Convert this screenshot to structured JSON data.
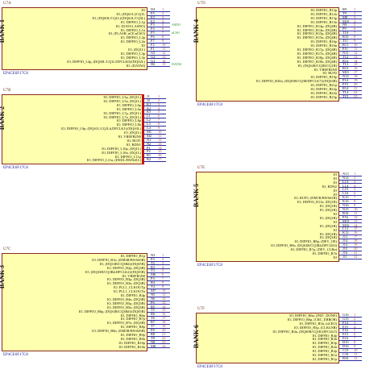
{
  "units": [
    {
      "ref": "U7A",
      "part": "EP4CE6F17C8",
      "bank": "BANK 1",
      "pins": [
        {
          "sig": "IO",
          "pin": "D4",
          "pno": "1"
        },
        {
          "sig": "IO, (DQS1L)/CQ1L",
          "pin": "E5",
          "pno": "2"
        },
        {
          "sig": "IO, (DQS0L/CQ1L)/(DQS2L/CQ3L)",
          "pin": "E3",
          "pno": "3"
        },
        {
          "sig": "IO, DIFFIO_L1p",
          "pin": "E2",
          "pno": "4"
        },
        {
          "sig": "IO, (DATA1,ASDO)",
          "pin": "F3",
          "pno": "5",
          "net": "ASDO"
        },
        {
          "sig": "IO, DIFFIO_L1n",
          "pin": "F4",
          "pno": "6"
        },
        {
          "sig": "IO, (FLASH_nCE,nCSO)",
          "pin": "F5",
          "pno": "7",
          "net": "nCSO"
        },
        {
          "sig": "IO, DIFFIO_L2p",
          "pin": "F6",
          "pno": "8"
        },
        {
          "sig": "IO, DIFFIO_L2n",
          "pin": "F7",
          "pno": "9"
        },
        {
          "sig": "IO",
          "pin": "F2",
          "pno": "10"
        },
        {
          "sig": "IO, (DQ1L)",
          "pin": "F1",
          "pno": "11"
        },
        {
          "sig": "IO, DIFFIO_L3p",
          "pin": "G5",
          "pno": "12"
        },
        {
          "sig": "IO, DIFFIO_L3n",
          "pin": "G2",
          "pno": "13"
        },
        {
          "sig": "IO, DIFFIO_L4p, (DQS0L/CQ1L/DPCLK0)/(DQS2L)",
          "pin": "G1",
          "pno": "14"
        },
        {
          "sig": "IO, (DATA0)",
          "pin": "H2",
          "pno": "15",
          "net": "DATA0"
        }
      ]
    },
    {
      "ref": "U7B",
      "part": "EP4CE6F17C8",
      "bank": "BANK 2",
      "pins": [
        {
          "sig": "IO, DIFFIO_L5p, (DQ1L)",
          "pin": "J1",
          "pno": "1"
        },
        {
          "sig": "IO, DIFFIO_L5n, (DQ1L)",
          "pin": "J2",
          "pno": "2"
        },
        {
          "sig": "IO, DIFFIO_L6p",
          "pin": "K1",
          "pno": "3"
        },
        {
          "sig": "IO, DIFFIO_L6n",
          "pin": "K2",
          "pno": "4"
        },
        {
          "sig": "IO, DIFFIO_L7p, (DQ1L)",
          "pin": "K5",
          "pno": "5"
        },
        {
          "sig": "IO, DIFFIO_L7n, (DQ1L)",
          "pin": "L1",
          "pno": "6"
        },
        {
          "sig": "IO, DIFFIO_L8p",
          "pin": "L2",
          "pno": "7"
        },
        {
          "sig": "IO, DIFFIO_L8n",
          "pin": "L3",
          "pno": "8"
        },
        {
          "sig": "IO, DIFFIO_L9p, (DQS1L/CQ1L#,DPCLK1)/(DQS3L)",
          "pin": "L4",
          "pno": "9"
        },
        {
          "sig": "IO, (DQ1L)",
          "pin": "M1",
          "pno": "10"
        },
        {
          "sig": "IO, VREFB2N0",
          "pin": "M2",
          "pno": "11"
        },
        {
          "sig": "IO, RUP1",
          "pin": "N1",
          "pno": "12"
        },
        {
          "sig": "IO, RDN1",
          "pin": "N2",
          "pno": "13"
        },
        {
          "sig": "IO, DIFFIO_L10p, (DQ1L)",
          "pin": "P1",
          "pno": "14"
        },
        {
          "sig": "IO, DIFFIO_L10n, (DQ1L)",
          "pin": "P2",
          "pno": "15"
        },
        {
          "sig": "IO, DIFFIO_L11p",
          "pin": "R1",
          "pno": "16"
        },
        {
          "sig": "IO, DIFFIO_L11n, (DM1L/BWS#1L)",
          "pin": "R2",
          "pno": "17"
        }
      ]
    },
    {
      "ref": "U7C",
      "part": "EP4CE6F17C8",
      "bank": "BANK 3",
      "pins": [
        {
          "sig": "IO, DIFFIO_B1p",
          "pin": "N3",
          "pno": "1"
        },
        {
          "sig": "IO, DIFFIO_B1n, (DM3B/BWS#3B)",
          "pin": "P3",
          "pno": "2"
        },
        {
          "sig": "IO, (DQS3B/CQ3B#)/(DQS5B)",
          "pin": "T2",
          "pno": "3"
        },
        {
          "sig": "IO, DIFFIO_B2p, (DQ3B)",
          "pin": "R3",
          "pno": "4"
        },
        {
          "sig": "IO, (DQS3B/CQ3B#,DPCLK2)/(DQS5B)",
          "pin": "T3",
          "pno": "5"
        },
        {
          "sig": "IO, VREFB3N0",
          "pin": "M6",
          "pno": "6"
        },
        {
          "sig": "IO, DIFFIO_B3p, (DQ3B)",
          "pin": "P4",
          "pno": "7"
        },
        {
          "sig": "IO, DIFFIO_B3n, (DQ3B)",
          "pin": "R4",
          "pno": "8"
        },
        {
          "sig": "IO, PLL1_CLKOUTp",
          "pin": "T4",
          "pno": "9"
        },
        {
          "sig": "IO, PLL1_CLKOUTn",
          "pin": "M7",
          "pno": "10"
        },
        {
          "sig": "IO, DIFFIO_B4p",
          "pin": "N5",
          "pno": "11"
        },
        {
          "sig": "IO, DIFFIO_B4n, (DQ3B)",
          "pin": "N6",
          "pno": "12"
        },
        {
          "sig": "IO, DIFFIO_B5p, (DQ5B)",
          "pin": "P6",
          "pno": "13"
        },
        {
          "sig": "IO, DIFFIO_B5n, (DQ5B)",
          "pin": "R5",
          "pno": "14"
        },
        {
          "sig": "IO, DIFFIO_B6p, (DQS3B/CQ3B#)/(DQS5B)",
          "pin": "T5",
          "pno": "15"
        },
        {
          "sig": "IO, DIFFIO_B6n",
          "pin": "R6",
          "pno": "16"
        },
        {
          "sig": "IO, DIFFIO_B7p",
          "pin": "T6",
          "pno": "17"
        },
        {
          "sig": "IO, DIFFIO_B7n, (DQ3B)",
          "pin": "R7",
          "pno": "18"
        },
        {
          "sig": "IO, DIFFIO_B8p",
          "pin": "T7",
          "pno": "19"
        },
        {
          "sig": "IO, DIFFIO_B8n, (DM5B/BWS#5B)",
          "pin": "P8",
          "pno": "20"
        },
        {
          "sig": "IO, DIFFIO_B9p",
          "pin": "R8",
          "pno": "21"
        },
        {
          "sig": "IO, DIFFIO_B9n",
          "pin": "T8",
          "pno": "22"
        },
        {
          "sig": "IO, DIFFIO_B10p",
          "pin": "N8",
          "pno": "23"
        },
        {
          "sig": "IO, DIFFIO_B10n",
          "pin": "M8",
          "pno": "24"
        }
      ]
    },
    {
      "ref": "U7D",
      "part": "EP4CE6F17C8",
      "bank": "BANK 4",
      "pins": [
        {
          "sig": "IO, DIFFIO_B12p",
          "pin": "R9",
          "pno": "1"
        },
        {
          "sig": "IO, DIFFIO_B12n",
          "pin": "T9",
          "pno": "2"
        },
        {
          "sig": "IO, DIFFIO_B13p",
          "pin": "M9",
          "pno": "3"
        },
        {
          "sig": "IO, DIFFIO_B13n",
          "pin": "M10",
          "pno": "4"
        },
        {
          "sig": "IO, DIFFIO_B14p, (DQ4B)",
          "pin": "N9",
          "pno": "5"
        },
        {
          "sig": "IO, DIFFIO_B14n, (DQ4B)",
          "pin": "P9",
          "pno": "6"
        },
        {
          "sig": "IO, DIFFIO_B15p, (DQ4B)",
          "pin": "T10",
          "pno": "7"
        },
        {
          "sig": "IO, DIFFIO_B15n, (DQ4B)",
          "pin": "R10",
          "pno": "8"
        },
        {
          "sig": "IO, DIFFIO_B16p",
          "pin": "T11",
          "pno": "9"
        },
        {
          "sig": "IO, DIFFIO_B16n",
          "pin": "R11",
          "pno": "10"
        },
        {
          "sig": "IO, DIFFIO_B17p, (DQ4B)",
          "pin": "P11",
          "pno": "11"
        },
        {
          "sig": "IO, DIFFIO_B17n, (DQ4B)",
          "pin": "N11",
          "pno": "12"
        },
        {
          "sig": "IO, DIFFIO_B18p, (DQ4B)",
          "pin": "T12",
          "pno": "13"
        },
        {
          "sig": "IO, DIFFIO_B18n, (DQ4B)",
          "pin": "R12",
          "pno": "14"
        },
        {
          "sig": "IO, (DQS2B/CQ3B/CQ1B)",
          "pin": "T13",
          "pno": "15"
        },
        {
          "sig": "IO, VREFB4N0",
          "pin": "R13",
          "pno": "16"
        },
        {
          "sig": "IO, RUP2",
          "pin": "M11",
          "pno": "17"
        },
        {
          "sig": "IO, DIFFIO_B19p",
          "pin": "N12",
          "pno": "18"
        },
        {
          "sig": "IO, DIFFIO_B20n, (DQS3B/CQ3B/DPCLK7)/(DQS3B)",
          "pin": "P14",
          "pno": "19"
        },
        {
          "sig": "IO, DIFFIO_B21p",
          "pin": "P15",
          "pno": "20"
        },
        {
          "sig": "IO, DIFFIO_B22p",
          "pin": "R14",
          "pno": "21"
        },
        {
          "sig": "IO, DIFFIO_B22n",
          "pin": "T14",
          "pno": "22"
        },
        {
          "sig": "IO, DIFFIO_B23p",
          "pin": "T15",
          "pno": "23"
        }
      ]
    },
    {
      "ref": "U7E",
      "part": "EP4CE6F17C8",
      "bank": "BANK 5",
      "pins": [
        {
          "sig": "IO",
          "pin": "N13",
          "pno": "1"
        },
        {
          "sig": "IO",
          "pin": "N14",
          "pno": "2"
        },
        {
          "sig": "IO",
          "pin": "L13",
          "pno": "3"
        },
        {
          "sig": "IO, RDN2",
          "pin": "L14",
          "pno": "4"
        },
        {
          "sig": "IO",
          "pin": "L15",
          "pno": "5"
        },
        {
          "sig": "IO",
          "pin": "L16",
          "pno": "6"
        },
        {
          "sig": "IO, RUP3, (DM1R/BWS#1R)",
          "pin": "K15",
          "pno": "7"
        },
        {
          "sig": "IO, DIFFIO_R11n, (DQ1R)",
          "pin": "K16",
          "pno": "8"
        },
        {
          "sig": "IO, (DQ1R)",
          "pin": "N16",
          "pno": "9"
        },
        {
          "sig": "IO, (DQ1R)",
          "pin": "N15",
          "pno": "10"
        },
        {
          "sig": "IO",
          "pin": "R16",
          "pno": "11"
        },
        {
          "sig": "IO, (DQ1R)",
          "pin": "P16",
          "pno": "12"
        },
        {
          "sig": "IO",
          "pin": "M15",
          "pno": "13"
        },
        {
          "sig": "IO, (DQ1R)",
          "pin": "M16",
          "pno": "14"
        },
        {
          "sig": "IO",
          "pin": "L12",
          "pno": "15"
        },
        {
          "sig": "IO, (DQ1R)",
          "pin": "K12",
          "pno": "16"
        },
        {
          "sig": "IO, (DQ1R)",
          "pin": "J12",
          "pno": "17"
        },
        {
          "sig": "IO, DIFFIO_R8p, (DEV_OE)",
          "pin": "J14",
          "pno": "18"
        },
        {
          "sig": "IO, DIFFIO_R9n, (DQS2R/CQ3R#,DPCLK6)",
          "pin": "J13",
          "pno": "19"
        },
        {
          "sig": "IO, DIFFIO_R7p, (DEV_CLRn)",
          "pin": "J15",
          "pno": "20"
        },
        {
          "sig": "IO, DIFFIO_R7n",
          "pin": "J16",
          "pno": "21"
        },
        {
          "sig": "IO",
          "pin": "J11",
          "pno": "22"
        }
      ]
    },
    {
      "ref": "U7F",
      "part": "EP4CE6F17C8",
      "bank": "BANK 6",
      "pins": [
        {
          "sig": "IO, DIFFIO_R6n, (INIT_DONE)",
          "pin": "G16",
          "pno": "1"
        },
        {
          "sig": "IO, DIFFIO_R6p, (CRC_ERROR)",
          "pin": "G15",
          "pno": "2"
        },
        {
          "sig": "IO, DIFFIO_R5n, (nCEO)",
          "pin": "F14",
          "pno": "3"
        },
        {
          "sig": "IO, DIFFIO_R5p, (CLKUSR)",
          "pin": "F15",
          "pno": "4"
        },
        {
          "sig": "IO, DIFFIO_R4n, (DQS0R/CQ1R,DPCLK5)",
          "pin": "F16",
          "pno": "5"
        },
        {
          "sig": "IO, DIFFIO_R4p",
          "pin": "E15",
          "pno": "6"
        },
        {
          "sig": "IO, DIFFIO_R3n",
          "pin": "E16",
          "pno": "7"
        },
        {
          "sig": "IO, DIFFIO_R3p",
          "pin": "D15",
          "pno": "8"
        },
        {
          "sig": "IO, DIFFIO_R2n",
          "pin": "D16",
          "pno": "9"
        },
        {
          "sig": "IO, DIFFIO_R2p",
          "pin": "C15",
          "pno": "10"
        },
        {
          "sig": "IO, DIFFIO_R1n",
          "pin": "C16",
          "pno": "11"
        },
        {
          "sig": "IO, DIFFIO_R1p",
          "pin": "B16",
          "pno": "12"
        }
      ]
    }
  ]
}
